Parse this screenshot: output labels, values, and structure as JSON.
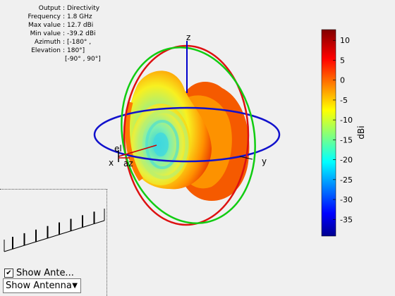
{
  "info": {
    "rows": [
      {
        "key": "Output",
        "value": "Directivity"
      },
      {
        "key": "Frequency",
        "value": "1.8 GHz"
      },
      {
        "key": "Max value",
        "value": "12.7 dBi"
      },
      {
        "key": "Min value",
        "value": "-39.2 dBi"
      },
      {
        "key": "Azimuth",
        "value": "[-180° ,"
      },
      {
        "key": "Elevation",
        "value": "180°]"
      }
    ],
    "continuation": "[-90° , 90°]"
  },
  "axes": {
    "x_label": "x",
    "y_label": "y",
    "z_label": "z",
    "el_label": "el",
    "az_label": "az"
  },
  "colorbar": {
    "label": "dBi",
    "min": -39.2,
    "max": 12.7,
    "ticks": [
      "10",
      "5",
      "0",
      "-5",
      "-10",
      "-15",
      "-20",
      "-25",
      "-30",
      "-35"
    ],
    "tick_values": [
      10,
      5,
      0,
      -5,
      -10,
      -15,
      -20,
      -25,
      -30,
      -35
    ],
    "colormap": "jet"
  },
  "controls": {
    "show_antenna_checkbox_label": "Show Ante...",
    "show_antenna_checked": true,
    "show_antenna_select_value": "Show Antenna"
  },
  "colors": {
    "elevation_circle": "#dd1111",
    "azimuth_circle": "#1111cc",
    "side_circle": "#11cc11",
    "z_axis": "#0000cc"
  }
}
